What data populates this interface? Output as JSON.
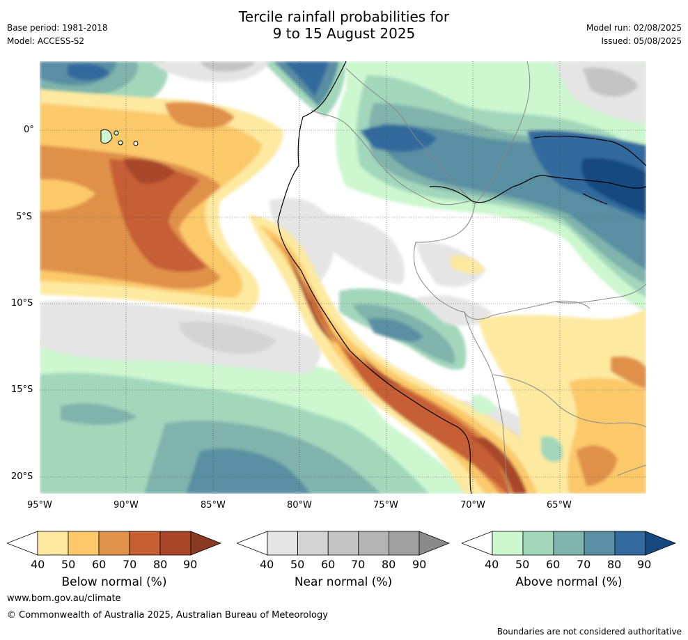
{
  "title_line1": "Tercile rainfall probabilities for",
  "title_line2": "9 to 15 August 2025",
  "base_period": "Base period: 1981-2018",
  "model": "Model: ACCESS-S2",
  "model_run": "Model run: 02/08/2025",
  "issued": "Issued: 05/08/2025",
  "lat_ticks": [
    "0°",
    "5°S",
    "10°S",
    "15°S",
    "20°S"
  ],
  "lon_ticks": [
    "95°W",
    "90°W",
    "85°W",
    "80°W",
    "75°W",
    "70°W",
    "65°W"
  ],
  "colorbars": [
    {
      "label": "Below normal (%)",
      "ticks": [
        "40",
        "50",
        "60",
        "70",
        "80",
        "90"
      ],
      "colors": [
        "#ffffff",
        "#fde9a0",
        "#fbc96b",
        "#e0914a",
        "#c65f34",
        "#a8472a",
        "#8a3a22"
      ]
    },
    {
      "label": "Near normal (%)",
      "ticks": [
        "40",
        "50",
        "60",
        "70",
        "80",
        "90"
      ],
      "colors": [
        "#ffffff",
        "#e5e5e5",
        "#d4d4d4",
        "#c4c4c4",
        "#b4b4b4",
        "#a0a0a0",
        "#8a8a8a"
      ]
    },
    {
      "label": "Above normal (%)",
      "ticks": [
        "40",
        "50",
        "60",
        "70",
        "80",
        "90"
      ],
      "colors": [
        "#ffffff",
        "#ccf7cf",
        "#a3d7bc",
        "#7fb3ab",
        "#5a8fa3",
        "#336b9e",
        "#17497f"
      ]
    }
  ],
  "website": "www.bom.gov.au/climate",
  "copyright": "© Commonwealth of Australia 2025, Australian Bureau of Meteorology",
  "disclaimer": "Boundaries are not considered authoritative"
}
